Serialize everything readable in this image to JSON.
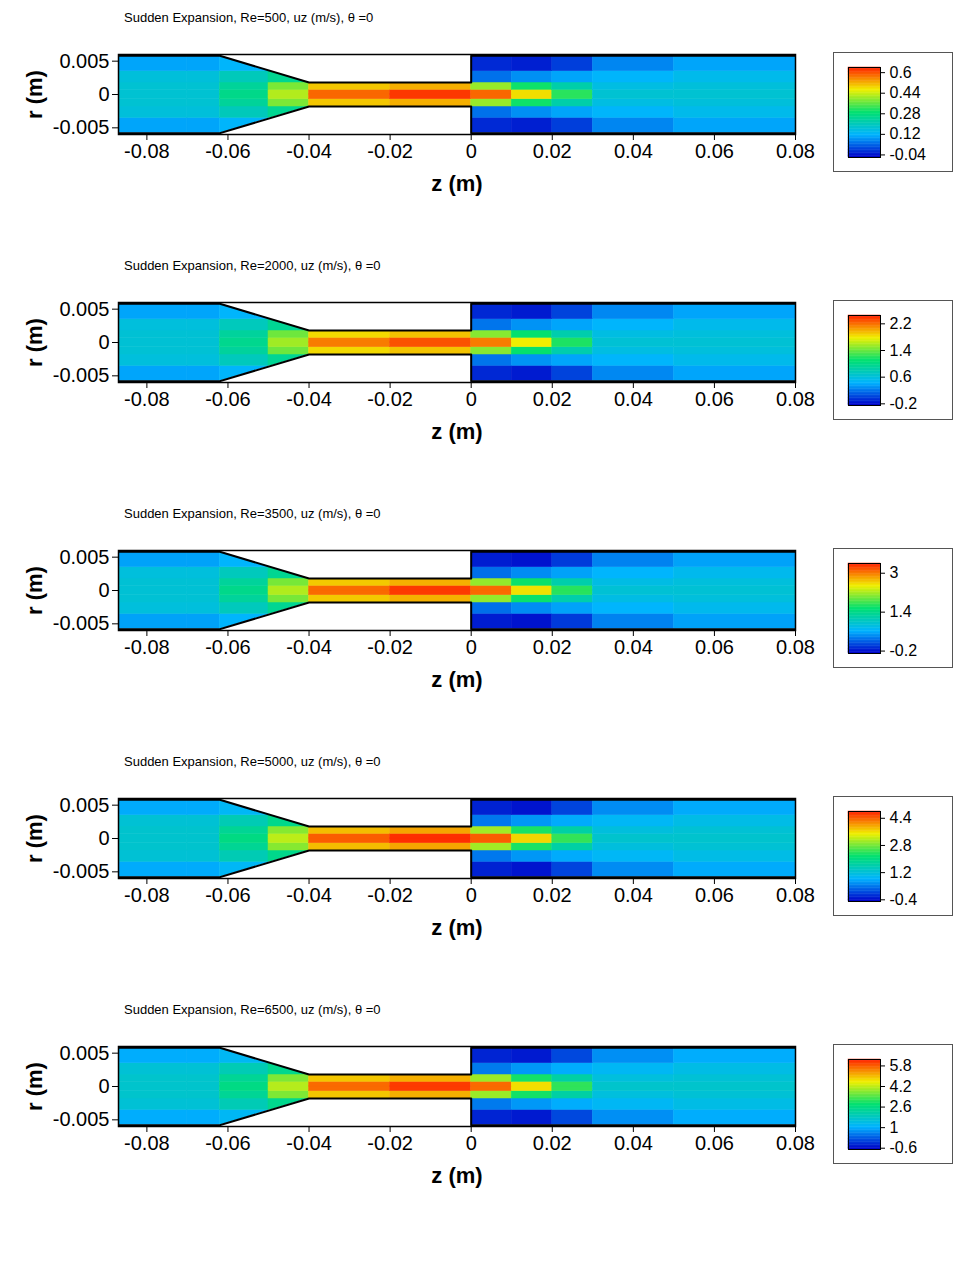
{
  "chart_data": [
    {
      "type": "heatmap",
      "title": "Sudden Expansion, Re=500, uz (m/s),   θ =0",
      "xlabel": "z (m)",
      "ylabel": "r (m)",
      "xlim": [
        -0.087,
        0.08
      ],
      "xticks": [
        -0.08,
        -0.06,
        -0.04,
        -0.02,
        0,
        0.02,
        0.04,
        0.06,
        0.08
      ],
      "ylim": [
        -0.006,
        0.006
      ],
      "yticks": [
        -0.005,
        0,
        0.005
      ],
      "z_edges": [
        -0.087,
        -0.07,
        -0.062,
        -0.05,
        -0.04,
        -0.02,
        0,
        0.01,
        0.02,
        0.03,
        0.05,
        0.08
      ],
      "r_edges": [
        -0.0058,
        -0.0035,
        -0.0018,
        -0.0007,
        0,
        0.0007,
        0.0018,
        0.0035,
        0.0058
      ],
      "values": [
        [
          0.1,
          0.1,
          0.12,
          null,
          null,
          null,
          -0.02,
          -0.03,
          0.0,
          0.07,
          0.1
        ],
        [
          0.16,
          0.16,
          0.2,
          0.25,
          null,
          null,
          0.05,
          0.08,
          0.1,
          0.12,
          0.14
        ],
        [
          0.17,
          0.17,
          0.24,
          0.38,
          0.5,
          0.52,
          0.4,
          0.3,
          0.22,
          0.15,
          0.16
        ],
        [
          0.17,
          0.17,
          0.26,
          0.42,
          0.58,
          0.62,
          0.58,
          0.48,
          0.32,
          0.17,
          0.17
        ],
        [
          0.17,
          0.17,
          0.26,
          0.42,
          0.58,
          0.62,
          0.58,
          0.48,
          0.32,
          0.17,
          0.17
        ],
        [
          0.17,
          0.17,
          0.24,
          0.38,
          0.5,
          0.52,
          0.4,
          0.3,
          0.22,
          0.15,
          0.16
        ],
        [
          0.16,
          0.16,
          0.2,
          0.25,
          null,
          null,
          0.05,
          0.08,
          0.1,
          0.12,
          0.14
        ],
        [
          0.1,
          0.1,
          0.12,
          null,
          null,
          null,
          -0.02,
          -0.03,
          0.0,
          0.07,
          0.1
        ]
      ],
      "colorbar": {
        "range": [
          -0.06,
          0.64
        ],
        "ticks": [
          -0.04,
          0.12,
          0.28,
          0.44,
          0.6
        ]
      },
      "wall": {
        "z": [
          -0.087,
          -0.062,
          -0.04,
          0,
          0,
          0.08
        ],
        "r_upper": [
          0.0058,
          0.0058,
          0.0018,
          0.0018,
          0.0058,
          0.0058
        ],
        "r_lower": [
          -0.0058,
          -0.0058,
          -0.0018,
          -0.0018,
          -0.0058,
          -0.0058
        ]
      }
    },
    {
      "type": "heatmap",
      "title": "Sudden Expansion, Re=2000, uz (m/s), θ =0",
      "xlabel": "z (m)",
      "ylabel": "r (m)",
      "xlim": [
        -0.087,
        0.08
      ],
      "xticks": [
        -0.08,
        -0.06,
        -0.04,
        -0.02,
        0,
        0.02,
        0.04,
        0.06,
        0.08
      ],
      "ylim": [
        -0.006,
        0.006
      ],
      "yticks": [
        -0.005,
        0,
        0.005
      ],
      "z_edges": [
        -0.087,
        -0.07,
        -0.062,
        -0.05,
        -0.04,
        -0.02,
        0,
        0.01,
        0.02,
        0.03,
        0.05,
        0.08
      ],
      "r_edges": [
        -0.0058,
        -0.0035,
        -0.0018,
        -0.0007,
        0,
        0.0007,
        0.0018,
        0.0035,
        0.0058
      ],
      "values": [
        [
          0.37,
          0.37,
          0.44,
          null,
          null,
          null,
          -0.1,
          -0.15,
          0.0,
          0.26,
          0.37
        ],
        [
          0.59,
          0.59,
          0.74,
          0.93,
          null,
          null,
          0.19,
          0.3,
          0.37,
          0.44,
          0.52
        ],
        [
          0.63,
          0.63,
          0.89,
          1.41,
          1.85,
          1.92,
          1.48,
          1.11,
          0.81,
          0.56,
          0.59
        ],
        [
          0.63,
          0.63,
          0.96,
          1.55,
          2.15,
          2.29,
          2.15,
          1.78,
          1.18,
          0.63,
          0.63
        ],
        [
          0.63,
          0.63,
          0.96,
          1.55,
          2.15,
          2.29,
          2.15,
          1.78,
          1.18,
          0.63,
          0.63
        ],
        [
          0.63,
          0.63,
          0.89,
          1.41,
          1.85,
          1.92,
          1.48,
          1.11,
          0.81,
          0.56,
          0.59
        ],
        [
          0.59,
          0.59,
          0.74,
          0.93,
          null,
          null,
          0.19,
          0.3,
          0.37,
          0.44,
          0.52
        ],
        [
          0.37,
          0.37,
          0.44,
          null,
          null,
          null,
          -0.1,
          -0.15,
          0.0,
          0.26,
          0.37
        ]
      ],
      "colorbar": {
        "range": [
          -0.25,
          2.45
        ],
        "ticks": [
          -0.2,
          0.6,
          1.4,
          2.2
        ]
      },
      "wall": {
        "z": [
          -0.087,
          -0.062,
          -0.04,
          0,
          0,
          0.08
        ],
        "r_upper": [
          0.0058,
          0.0058,
          0.0018,
          0.0018,
          0.0058,
          0.0058
        ],
        "r_lower": [
          -0.0058,
          -0.0058,
          -0.0018,
          -0.0018,
          -0.0058,
          -0.0058
        ]
      }
    },
    {
      "type": "heatmap",
      "title": "Sudden Expansion, Re=3500, uz (m/s), θ =0",
      "xlabel": "z (m)",
      "ylabel": "r (m)",
      "xlim": [
        -0.087,
        0.08
      ],
      "xticks": [
        -0.08,
        -0.06,
        -0.04,
        -0.02,
        0,
        0.02,
        0.04,
        0.06,
        0.08
      ],
      "ylim": [
        -0.006,
        0.006
      ],
      "yticks": [
        -0.005,
        0,
        0.005
      ],
      "z_edges": [
        -0.087,
        -0.07,
        -0.062,
        -0.05,
        -0.04,
        -0.02,
        0,
        0.01,
        0.02,
        0.03,
        0.05,
        0.08
      ],
      "r_edges": [
        -0.0058,
        -0.0035,
        -0.0018,
        -0.0007,
        0,
        0.0007,
        0.0018,
        0.0035,
        0.0058
      ],
      "values": [
        [
          0.53,
          0.53,
          0.64,
          null,
          null,
          null,
          -0.15,
          -0.2,
          0.0,
          0.37,
          0.53
        ],
        [
          0.85,
          0.85,
          1.06,
          1.33,
          null,
          null,
          0.27,
          0.42,
          0.53,
          0.64,
          0.74
        ],
        [
          0.9,
          0.9,
          1.27,
          2.01,
          2.65,
          2.76,
          2.12,
          1.59,
          1.17,
          0.8,
          0.85
        ],
        [
          0.9,
          0.9,
          1.38,
          2.23,
          3.07,
          3.29,
          3.07,
          2.54,
          1.7,
          0.9,
          0.9
        ],
        [
          0.9,
          0.9,
          1.38,
          2.23,
          3.07,
          3.29,
          3.07,
          2.54,
          1.7,
          0.9,
          0.9
        ],
        [
          0.9,
          0.9,
          1.27,
          2.01,
          2.65,
          2.76,
          2.12,
          1.59,
          1.17,
          0.8,
          0.85
        ],
        [
          0.85,
          0.85,
          1.06,
          1.33,
          null,
          null,
          0.27,
          0.42,
          0.53,
          0.64,
          0.74
        ],
        [
          0.53,
          0.53,
          0.64,
          null,
          null,
          null,
          -0.15,
          -0.2,
          0.0,
          0.37,
          0.53
        ]
      ],
      "colorbar": {
        "range": [
          -0.3,
          3.4
        ],
        "ticks": [
          -0.2,
          1.4,
          3
        ]
      },
      "wall": {
        "z": [
          -0.087,
          -0.062,
          -0.04,
          0,
          0,
          0.08
        ],
        "r_upper": [
          0.0058,
          0.0058,
          0.0018,
          0.0018,
          0.0058,
          0.0058
        ],
        "r_lower": [
          -0.0058,
          -0.0058,
          -0.0018,
          -0.0018,
          -0.0058,
          -0.0058
        ]
      }
    },
    {
      "type": "heatmap",
      "title": "Sudden Expansion, Re=5000, uz (m/s), θ =0",
      "xlabel": "z (m)",
      "ylabel": "r (m)",
      "xlim": [
        -0.087,
        0.08
      ],
      "xticks": [
        -0.08,
        -0.06,
        -0.04,
        -0.02,
        0,
        0.02,
        0.04,
        0.06,
        0.08
      ],
      "ylim": [
        -0.006,
        0.006
      ],
      "yticks": [
        -0.005,
        0,
        0.005
      ],
      "z_edges": [
        -0.087,
        -0.07,
        -0.062,
        -0.05,
        -0.04,
        -0.02,
        0,
        0.01,
        0.02,
        0.03,
        0.05,
        0.08
      ],
      "r_edges": [
        -0.0058,
        -0.0035,
        -0.0018,
        -0.0007,
        0,
        0.0007,
        0.0018,
        0.0035,
        0.0058
      ],
      "values": [
        [
          0.76,
          0.76,
          0.91,
          null,
          null,
          null,
          -0.25,
          -0.35,
          0.0,
          0.53,
          0.76
        ],
        [
          1.22,
          1.22,
          1.52,
          1.9,
          null,
          null,
          0.38,
          0.61,
          0.76,
          0.91,
          1.06
        ],
        [
          1.29,
          1.29,
          1.82,
          2.89,
          3.8,
          3.95,
          3.04,
          2.28,
          1.67,
          1.14,
          1.22
        ],
        [
          1.29,
          1.29,
          1.98,
          3.19,
          4.41,
          4.71,
          4.41,
          3.65,
          2.43,
          1.29,
          1.29
        ],
        [
          1.29,
          1.29,
          1.98,
          3.19,
          4.41,
          4.71,
          4.41,
          3.65,
          2.43,
          1.29,
          1.29
        ],
        [
          1.29,
          1.29,
          1.82,
          2.89,
          3.8,
          3.95,
          3.04,
          2.28,
          1.67,
          1.14,
          1.22
        ],
        [
          1.22,
          1.22,
          1.52,
          1.9,
          null,
          null,
          0.38,
          0.61,
          0.76,
          0.91,
          1.06
        ],
        [
          0.76,
          0.76,
          0.91,
          null,
          null,
          null,
          -0.25,
          -0.35,
          0.0,
          0.53,
          0.76
        ]
      ],
      "colorbar": {
        "range": [
          -0.5,
          4.8
        ],
        "ticks": [
          -0.4,
          1.2,
          2.8,
          4.4
        ]
      },
      "wall": {
        "z": [
          -0.087,
          -0.062,
          -0.04,
          0,
          0,
          0.08
        ],
        "r_upper": [
          0.0058,
          0.0058,
          0.0018,
          0.0018,
          0.0058,
          0.0058
        ],
        "r_lower": [
          -0.0058,
          -0.0058,
          -0.0018,
          -0.0018,
          -0.0058,
          -0.0058
        ]
      }
    },
    {
      "type": "heatmap",
      "title": "Sudden Expansion, Re=6500, uz (m/s), θ =0",
      "xlabel": "z (m)",
      "ylabel": "r (m)",
      "xlim": [
        -0.087,
        0.08
      ],
      "xticks": [
        -0.08,
        -0.06,
        -0.04,
        -0.02,
        0,
        0.02,
        0.04,
        0.06,
        0.08
      ],
      "ylim": [
        -0.006,
        0.006
      ],
      "yticks": [
        -0.005,
        0,
        0.005
      ],
      "z_edges": [
        -0.087,
        -0.07,
        -0.062,
        -0.05,
        -0.04,
        -0.02,
        0,
        0.01,
        0.02,
        0.03,
        0.05,
        0.08
      ],
      "r_edges": [
        -0.0058,
        -0.0035,
        -0.0018,
        -0.0007,
        0,
        0.0007,
        0.0018,
        0.0035,
        0.0058
      ],
      "values": [
        [
          0.98,
          0.98,
          1.18,
          null,
          null,
          null,
          -0.35,
          -0.45,
          0.0,
          0.69,
          0.98
        ],
        [
          1.57,
          1.57,
          1.96,
          2.45,
          null,
          null,
          0.49,
          0.78,
          0.98,
          1.18,
          1.37
        ],
        [
          1.67,
          1.67,
          2.35,
          3.72,
          4.9,
          5.1,
          3.92,
          2.94,
          2.16,
          1.47,
          1.57
        ],
        [
          1.67,
          1.67,
          2.55,
          4.12,
          5.68,
          6.08,
          5.68,
          4.7,
          3.14,
          1.67,
          1.67
        ],
        [
          1.67,
          1.67,
          2.55,
          4.12,
          5.68,
          6.08,
          5.68,
          4.7,
          3.14,
          1.67,
          1.67
        ],
        [
          1.67,
          1.67,
          2.35,
          3.72,
          4.9,
          5.1,
          3.92,
          2.94,
          2.16,
          1.47,
          1.57
        ],
        [
          1.57,
          1.57,
          1.96,
          2.45,
          null,
          null,
          0.49,
          0.78,
          0.98,
          1.18,
          1.37
        ],
        [
          0.98,
          0.98,
          1.18,
          null,
          null,
          null,
          -0.35,
          -0.45,
          0.0,
          0.69,
          0.98
        ]
      ],
      "colorbar": {
        "range": [
          -0.7,
          6.3
        ],
        "ticks": [
          -0.6,
          1,
          2.6,
          4.2,
          5.8
        ]
      },
      "wall": {
        "z": [
          -0.087,
          -0.062,
          -0.04,
          0,
          0,
          0.08
        ],
        "r_upper": [
          0.0058,
          0.0058,
          0.0018,
          0.0018,
          0.0058,
          0.0058
        ],
        "r_lower": [
          -0.0058,
          -0.0058,
          -0.0018,
          -0.0018,
          -0.0058,
          -0.0058
        ]
      }
    }
  ]
}
